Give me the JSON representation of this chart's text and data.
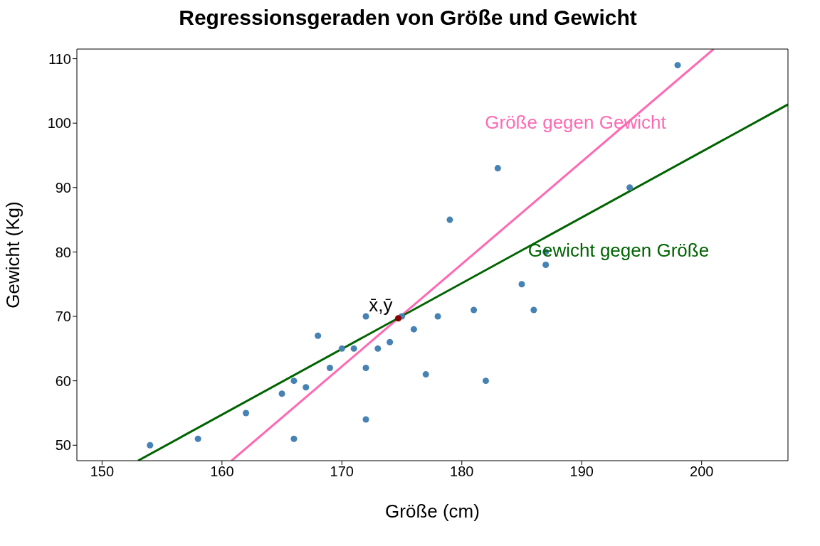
{
  "chart_data": {
    "type": "scatter",
    "title": "Regressionsgeraden von Größe und Gewicht",
    "xlabel": "Größe (cm)",
    "ylabel": "Gewicht (Kg)",
    "xlim": [
      147.9,
      207.2
    ],
    "ylim": [
      47.6,
      111.5
    ],
    "xticks": [
      150,
      160,
      170,
      180,
      190,
      200
    ],
    "yticks": [
      50,
      60,
      70,
      80,
      90,
      100,
      110
    ],
    "grid": false,
    "legend": false,
    "marker": "circle",
    "series": [
      {
        "color": "#4682b4",
        "x": [
          154,
          158,
          162,
          165,
          166,
          166,
          167,
          168,
          169,
          170,
          171,
          172,
          172,
          172,
          173,
          174,
          175,
          176,
          177,
          178,
          179,
          181,
          182,
          183,
          185,
          186,
          187,
          187,
          194,
          198
        ],
        "values": [
          50,
          51,
          55,
          58,
          60,
          51,
          59,
          67,
          62,
          65,
          65,
          70,
          62,
          54,
          65,
          66,
          70,
          68,
          61,
          70,
          85,
          71,
          60,
          93,
          75,
          71,
          80,
          78,
          90,
          109
        ]
      },
      {
        "type": "line",
        "name": "Größe gegen Gewicht",
        "color": "#ff69b4",
        "x": [
          160.8,
          201
        ],
        "values": [
          47.6,
          111.5
        ],
        "marker": "none"
      },
      {
        "type": "line",
        "name": "Gewicht gegen Größe",
        "color": "#006400",
        "x": [
          153,
          207.2
        ],
        "values": [
          47.6,
          102.9
        ],
        "marker": "none"
      },
      {
        "color": "#8b0000",
        "x": [
          174.7
        ],
        "values": [
          69.7
        ]
      }
    ],
    "annotations": [
      "x̄,ȳ"
    ]
  }
}
